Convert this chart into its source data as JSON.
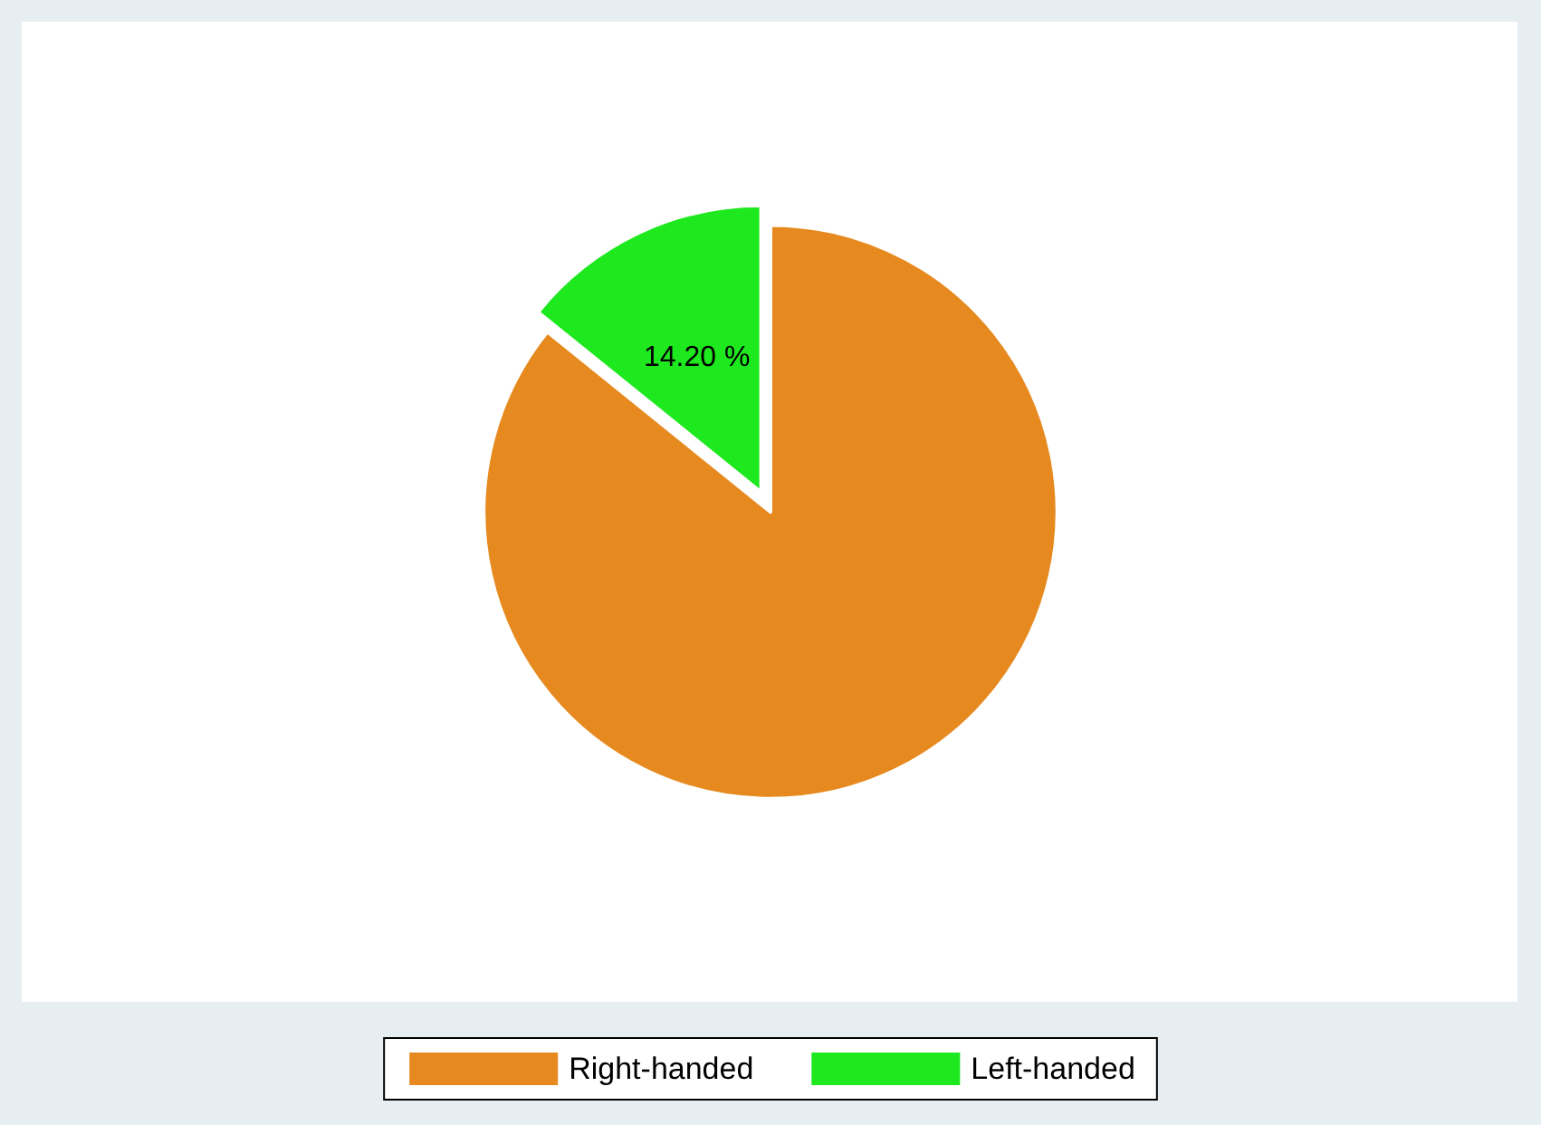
{
  "chart_data": {
    "type": "pie",
    "categories": [
      "Right-handed",
      "Left-handed"
    ],
    "values": [
      85.8,
      14.2
    ],
    "colors": [
      "#e68a1f",
      "#1ee81e"
    ],
    "value_labels": [
      null,
      "14.20 %"
    ],
    "legend": "bottom"
  }
}
